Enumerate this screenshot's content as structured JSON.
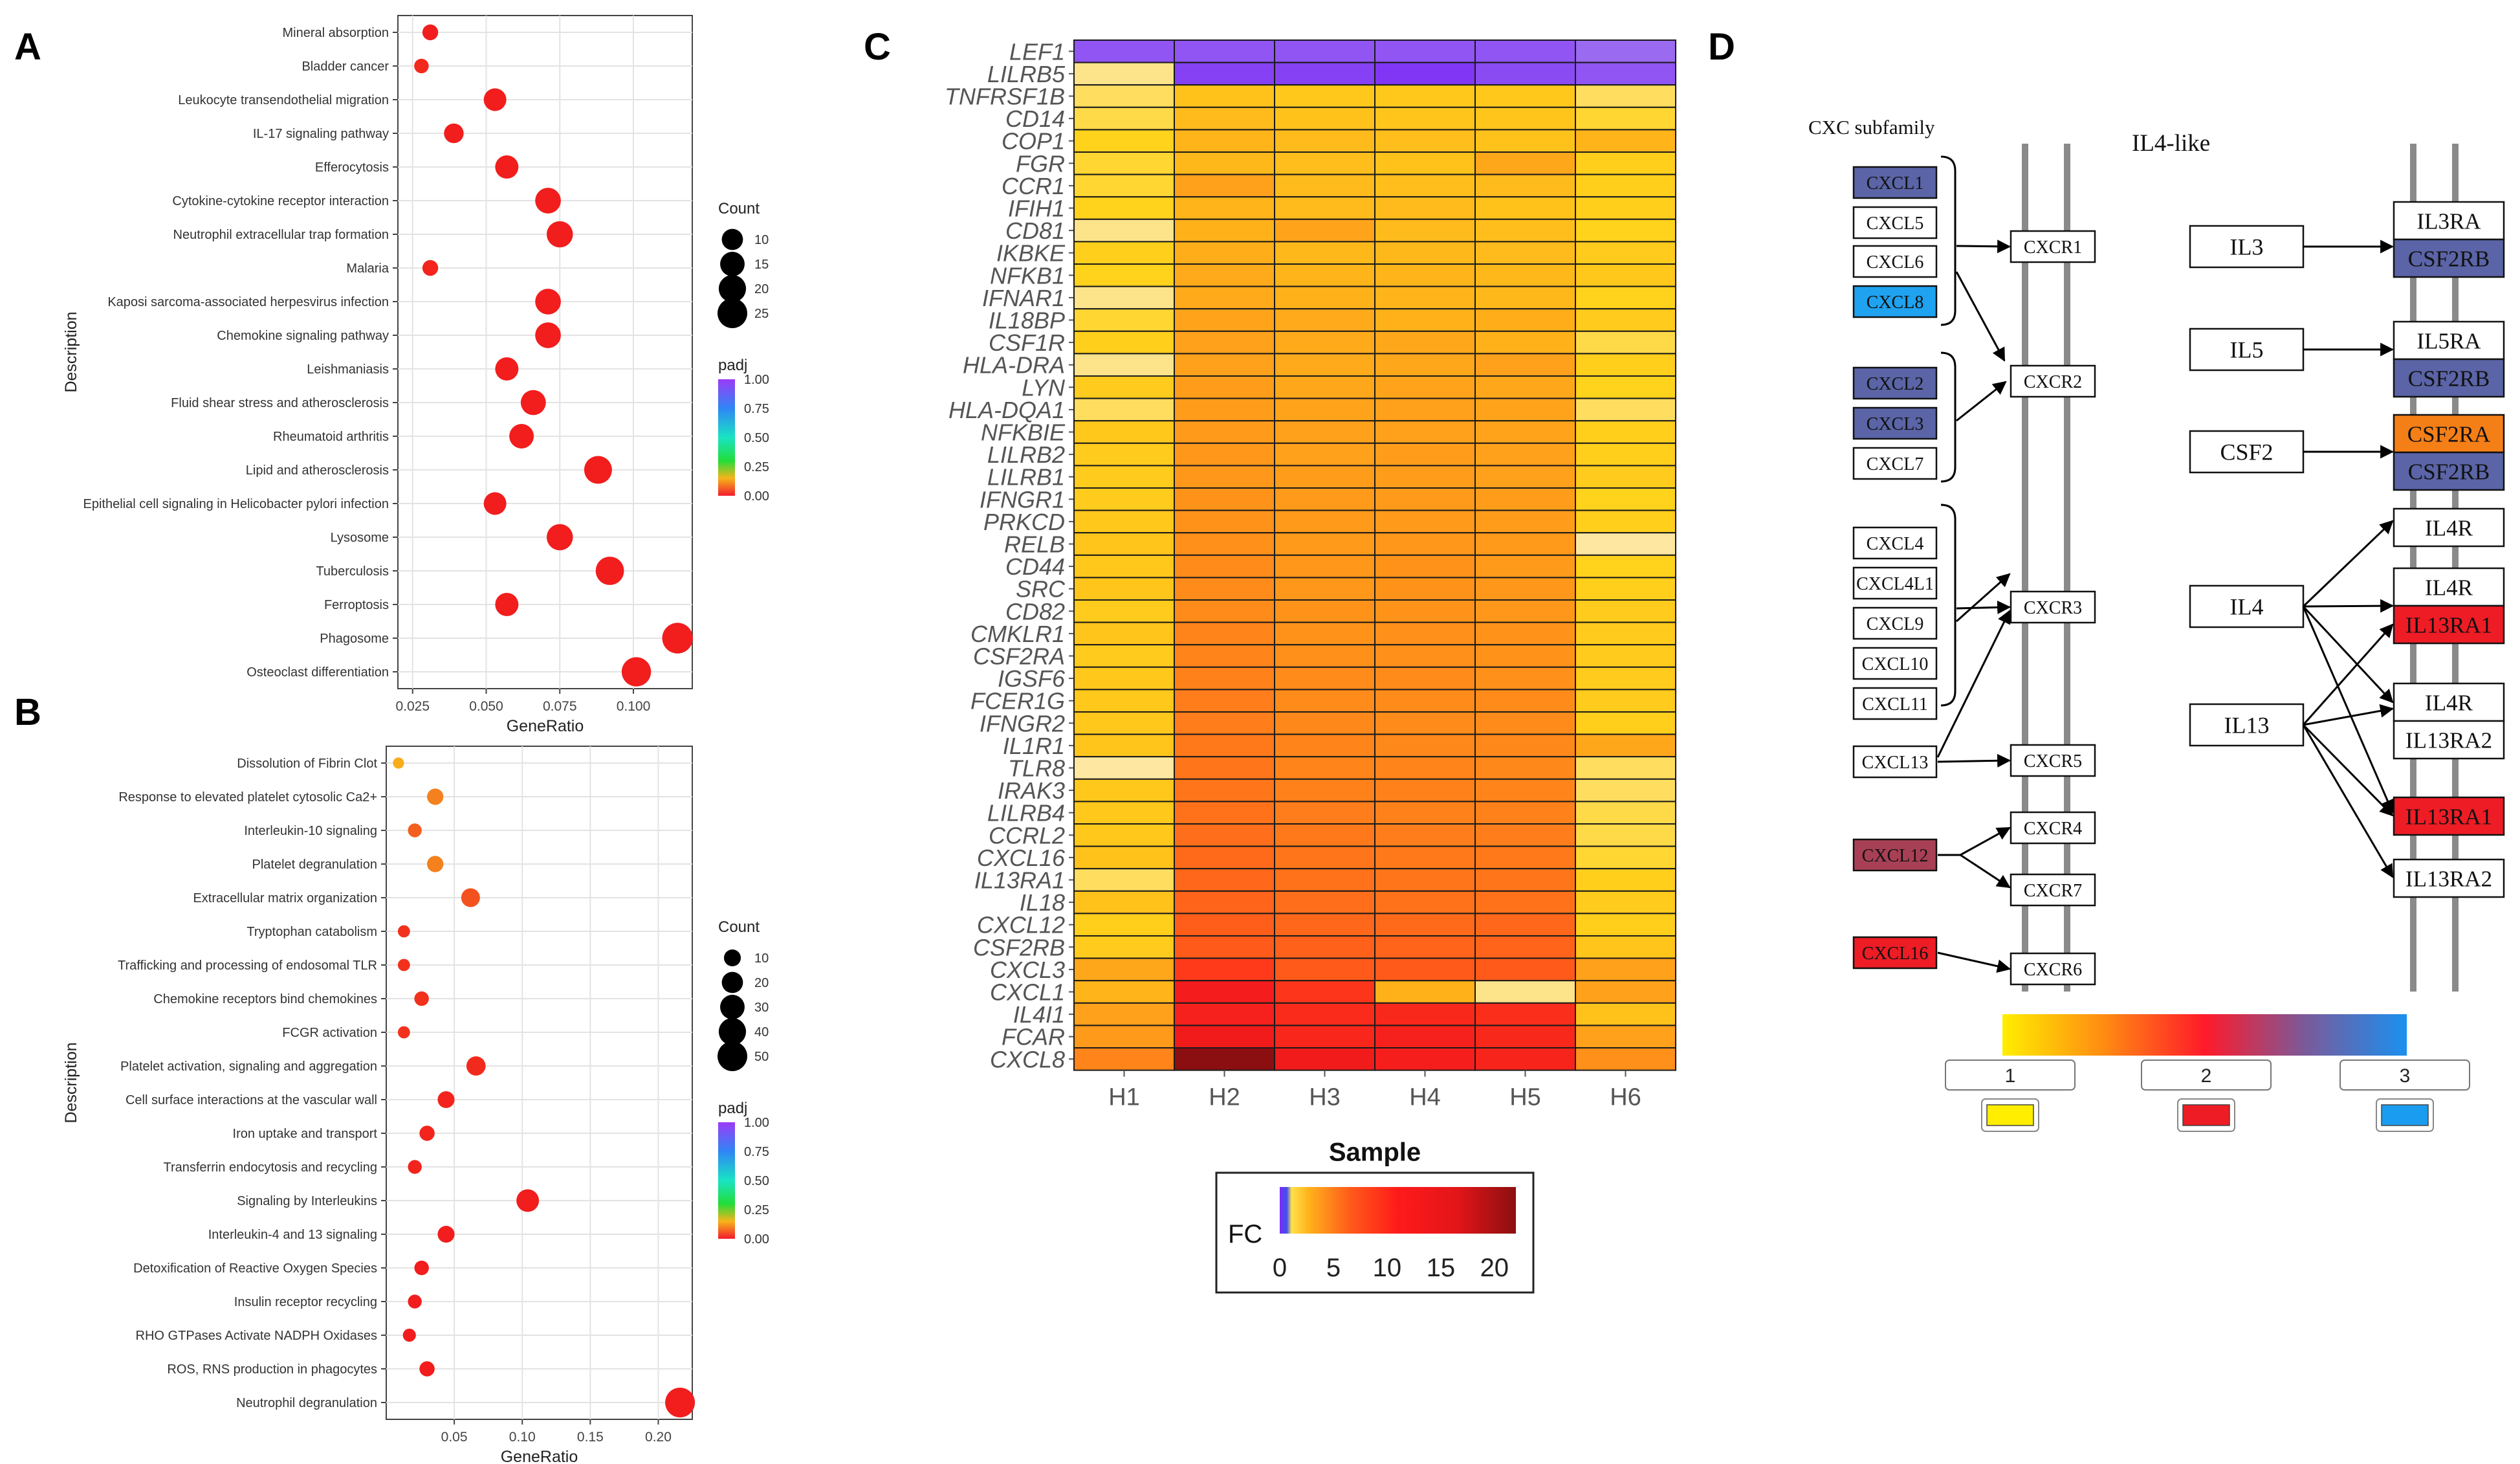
{
  "panels": {
    "a": "A",
    "b": "B",
    "c": "C",
    "d": "D"
  },
  "colors": {
    "dot_red": "#f21d1d",
    "dot_orange": "#f4801e",
    "dot_orange2": "#f59c1d",
    "heat_purple": "#8e2cf5",
    "heat_purple2": "#7c1cf0",
    "cxcl_navy": "#5a64a6",
    "cxcl_sky": "#1fa2f0",
    "cxcl_maroon": "#a84055",
    "node_red": "#ee1c25",
    "node_orange": "#f57f17",
    "track_gray": "#8a8a8a"
  },
  "chart_data": [
    {
      "id": "A",
      "type": "scatter",
      "xlabel": "GeneRatio",
      "ylabel": "Description",
      "xlim": [
        0.02,
        0.12
      ],
      "xticks": [
        0.025,
        0.05,
        0.075,
        0.1
      ],
      "xtick_labels": [
        "0.025",
        "0.050",
        "0.075",
        "0.100"
      ],
      "categories": [
        "Mineral absorption",
        "Bladder cancer",
        "Leukocyte transendothelial migration",
        "IL-17 signaling pathway",
        "Efferocytosis",
        "Cytokine-cytokine receptor interaction",
        "Neutrophil extracellular trap formation",
        "Malaria",
        "Kaposi sarcoma-associated herpesvirus infection",
        "Chemokine signaling pathway",
        "Leishmaniasis",
        "Fluid shear stress and atherosclerosis",
        "Rheumatoid arthritis",
        "Lipid and atherosclerosis",
        "Epithelial cell signaling in Helicobacter pylori infection",
        "Lysosome",
        "Tuberculosis",
        "Ferroptosis",
        "Phagosome",
        "Osteoclast differentiation"
      ],
      "x": [
        0.031,
        0.028,
        0.053,
        0.039,
        0.057,
        0.071,
        0.075,
        0.031,
        0.071,
        0.071,
        0.057,
        0.066,
        0.062,
        0.088,
        0.053,
        0.075,
        0.092,
        0.057,
        0.115,
        0.101
      ],
      "count": [
        4,
        3,
        12,
        8,
        13,
        17,
        18,
        4,
        17,
        17,
        13,
        16,
        15,
        21,
        12,
        18,
        22,
        13,
        27,
        24
      ],
      "padj": [
        0.0,
        0.02,
        0.0,
        0.0,
        0.0,
        0.0,
        0.0,
        0.01,
        0.0,
        0.0,
        0.0,
        0.0,
        0.0,
        0.0,
        0.0,
        0.0,
        0.0,
        0.0,
        0.0,
        0.0
      ],
      "legend_count": {
        "title": "Count",
        "values": [
          10,
          15,
          20,
          25
        ]
      },
      "legend_padj": {
        "title": "padj",
        "ticks": [
          "1.00",
          "0.75",
          "0.50",
          "0.25",
          "0.00"
        ]
      }
    },
    {
      "id": "B",
      "type": "scatter",
      "xlabel": "GeneRatio",
      "ylabel": "Description",
      "xlim": [
        0.0,
        0.225
      ],
      "xticks": [
        0.05,
        0.1,
        0.15,
        0.2
      ],
      "xtick_labels": [
        "0.05",
        "0.10",
        "0.15",
        "0.20"
      ],
      "categories": [
        "Dissolution of Fibrin Clot",
        "Response to elevated platelet cytosolic Ca2+",
        "Interleukin-10 signaling",
        "Platelet degranulation",
        "Extracellular matrix organization",
        "Tryptophan catabolism",
        "Trafficking and processing of endosomal TLR",
        "Chemokine receptors bind chemokines",
        "FCGR activation",
        "Platelet activation, signaling and aggregation",
        "Cell surface interactions at the vascular wall",
        "Iron uptake and transport",
        "Transferrin endocytosis and recycling",
        "Signaling by Interleukins",
        "Interleukin-4 and 13 signaling",
        "Detoxification of Reactive Oxygen Species",
        "Insulin receptor recycling",
        "RHO GTPases Activate NADPH Oxidases",
        "ROS, RNS production in phagocytes",
        "Neutrophil degranulation"
      ],
      "x": [
        0.009,
        0.036,
        0.021,
        0.036,
        0.062,
        0.013,
        0.013,
        0.026,
        0.013,
        0.066,
        0.044,
        0.03,
        0.021,
        0.104,
        0.044,
        0.026,
        0.021,
        0.017,
        0.03,
        0.216
      ],
      "count": [
        2,
        9,
        5,
        9,
        14,
        3,
        3,
        6,
        3,
        15,
        10,
        7,
        5,
        24,
        10,
        6,
        5,
        4,
        7,
        50
      ],
      "padj": [
        0.25,
        0.15,
        0.1,
        0.15,
        0.08,
        0.03,
        0.03,
        0.03,
        0.03,
        0.02,
        0.01,
        0.01,
        0.01,
        0.0,
        0.0,
        0.0,
        0.0,
        0.0,
        0.0,
        0.0
      ],
      "legend_count": {
        "title": "Count",
        "values": [
          10,
          20,
          30,
          40,
          50
        ]
      },
      "legend_padj": {
        "title": "padj",
        "ticks": [
          "1.00",
          "0.75",
          "0.50",
          "0.25",
          "0.00"
        ]
      }
    },
    {
      "id": "C",
      "type": "heatmap",
      "xlabel": "Sample",
      "columns": [
        "H1",
        "H2",
        "H3",
        "H4",
        "H5",
        "H6"
      ],
      "rows": [
        "LEF1",
        "LILRB5",
        "TNFRSF1B",
        "CD14",
        "COP1",
        "FGR",
        "CCR1",
        "IFIH1",
        "CD81",
        "IKBKE",
        "NFKB1",
        "IFNAR1",
        "IL18BP",
        "CSF1R",
        "HLA-DRA",
        "LYN",
        "HLA-DQA1",
        "NFKBIE",
        "LILRB2",
        "LILRB1",
        "IFNGR1",
        "PRKCD",
        "RELB",
        "CD44",
        "SRC",
        "CD82",
        "CMKLR1",
        "CSF2RA",
        "IGSF6",
        "FCER1G",
        "IFNGR2",
        "IL1R1",
        "TLR8",
        "IRAK3",
        "LILRB4",
        "CCRL2",
        "CXCL16",
        "IL13RA1",
        "IL18",
        "CXCL12",
        "CSF2RB",
        "CXCL3",
        "CXCL1",
        "IL4I1",
        "FCAR",
        "CXCL8"
      ],
      "values": [
        [
          0.2,
          0.2,
          0.2,
          0.2,
          0.2,
          0.3
        ],
        [
          1.0,
          0.1,
          0.1,
          0.05,
          0.15,
          0.2
        ],
        [
          1.2,
          2.0,
          1.8,
          1.8,
          1.8,
          1.2
        ],
        [
          1.3,
          2.2,
          2.0,
          1.9,
          1.9,
          1.4
        ],
        [
          1.5,
          2.4,
          2.2,
          2.1,
          2.0,
          2.4
        ],
        [
          1.4,
          2.3,
          2.1,
          2.0,
          2.8,
          1.6
        ],
        [
          1.4,
          3.0,
          2.2,
          2.1,
          2.2,
          1.6
        ],
        [
          1.5,
          2.4,
          2.2,
          2.2,
          2.0,
          1.6
        ],
        [
          1.0,
          2.5,
          2.9,
          2.2,
          2.1,
          1.5
        ],
        [
          1.6,
          2.6,
          2.3,
          2.3,
          2.2,
          1.7
        ],
        [
          1.5,
          2.7,
          2.4,
          2.4,
          2.3,
          1.8
        ],
        [
          1.0,
          2.7,
          2.5,
          2.4,
          2.3,
          1.5
        ],
        [
          1.4,
          2.9,
          2.7,
          2.5,
          2.6,
          1.7
        ],
        [
          1.6,
          3.0,
          2.7,
          2.8,
          2.5,
          1.3
        ],
        [
          1.0,
          3.0,
          2.7,
          2.8,
          3.0,
          1.6
        ],
        [
          1.7,
          3.1,
          2.8,
          2.9,
          2.8,
          1.5
        ],
        [
          1.2,
          3.1,
          2.9,
          3.0,
          2.9,
          1.2
        ],
        [
          1.8,
          3.2,
          3.0,
          3.0,
          2.9,
          1.6
        ],
        [
          1.7,
          3.3,
          3.0,
          3.1,
          3.0,
          1.6
        ],
        [
          1.7,
          3.3,
          3.1,
          3.1,
          3.0,
          1.7
        ],
        [
          1.7,
          3.4,
          3.2,
          3.2,
          3.1,
          1.5
        ],
        [
          1.8,
          3.4,
          3.2,
          3.2,
          3.1,
          1.6
        ],
        [
          1.9,
          3.5,
          3.2,
          3.3,
          3.2,
          0.9
        ],
        [
          1.8,
          3.6,
          3.3,
          3.4,
          3.2,
          1.5
        ],
        [
          1.9,
          3.6,
          3.3,
          3.4,
          3.3,
          1.6
        ],
        [
          1.7,
          3.6,
          3.4,
          3.4,
          3.3,
          1.7
        ],
        [
          1.9,
          3.8,
          3.4,
          3.5,
          3.4,
          1.7
        ],
        [
          1.7,
          3.8,
          3.5,
          3.5,
          3.4,
          1.7
        ],
        [
          1.8,
          3.9,
          3.6,
          3.6,
          3.5,
          1.7
        ],
        [
          1.8,
          4.0,
          3.6,
          3.6,
          3.6,
          1.7
        ],
        [
          1.8,
          4.0,
          3.7,
          3.6,
          3.6,
          1.6
        ],
        [
          1.9,
          4.1,
          3.8,
          3.7,
          3.7,
          2.8
        ],
        [
          0.9,
          4.2,
          3.8,
          3.8,
          3.7,
          1.2
        ],
        [
          1.8,
          4.2,
          3.9,
          3.9,
          3.8,
          1.2
        ],
        [
          1.8,
          4.3,
          4.0,
          3.9,
          3.9,
          1.3
        ],
        [
          1.8,
          4.4,
          4.1,
          4.0,
          4.0,
          1.3
        ],
        [
          2.0,
          4.5,
          4.2,
          4.1,
          4.1,
          1.4
        ],
        [
          1.2,
          4.6,
          4.3,
          4.2,
          4.2,
          1.6
        ],
        [
          2.0,
          4.7,
          4.4,
          4.3,
          4.3,
          1.7
        ],
        [
          1.6,
          4.9,
          4.6,
          4.5,
          4.6,
          1.6
        ],
        [
          1.7,
          5.0,
          4.8,
          4.7,
          4.7,
          1.9
        ],
        [
          2.8,
          6.0,
          5.0,
          5.0,
          5.0,
          3.0
        ],
        [
          2.4,
          9.0,
          6.5,
          2.5,
          1.0,
          3.0
        ],
        [
          3.0,
          8.5,
          7.5,
          7.8,
          7.2,
          2.0
        ],
        [
          3.2,
          9.5,
          8.0,
          8.5,
          7.8,
          3.0
        ],
        [
          3.8,
          20.0,
          9.5,
          8.8,
          8.2,
          3.5
        ]
      ],
      "legend": {
        "title": "FC",
        "ticks": [
          "0",
          "5",
          "10",
          "15",
          "20"
        ],
        "min": 0,
        "max": 22
      }
    }
  ],
  "pathway": {
    "cxc_title": "CXC subfamily",
    "il4_title": "IL4-like",
    "ligands": [
      {
        "label": "CXCL1",
        "color": "navy"
      },
      {
        "label": "CXCL5",
        "color": "white"
      },
      {
        "label": "CXCL6",
        "color": "white"
      },
      {
        "label": "CXCL8",
        "color": "sky"
      },
      {
        "label": "CXCL2",
        "color": "navy"
      },
      {
        "label": "CXCL3",
        "color": "navy"
      },
      {
        "label": "CXCL7",
        "color": "white"
      },
      {
        "label": "CXCL4",
        "color": "white"
      },
      {
        "label": "CXCL4L1",
        "color": "white"
      },
      {
        "label": "CXCL9",
        "color": "white"
      },
      {
        "label": "CXCL10",
        "color": "white"
      },
      {
        "label": "CXCL11",
        "color": "white"
      },
      {
        "label": "CXCL13",
        "color": "white"
      },
      {
        "label": "CXCL12",
        "color": "maroon"
      },
      {
        "label": "CXCL16",
        "color": "red"
      }
    ],
    "receptors": [
      "CXCR1",
      "CXCR2",
      "CXCR3",
      "CXCR5",
      "CXCR4",
      "CXCR7",
      "CXCR6"
    ],
    "il_ligands": [
      "IL3",
      "IL5",
      "CSF2",
      "IL4",
      "IL13"
    ],
    "il_receptors": [
      {
        "top": "IL3RA",
        "top_color": "white",
        "bottom": "CSF2RB",
        "bottom_color": "navy"
      },
      {
        "top": "IL5RA",
        "top_color": "white",
        "bottom": "CSF2RB",
        "bottom_color": "navy"
      },
      {
        "top": "CSF2RA",
        "top_color": "orange",
        "bottom": "CSF2RB",
        "bottom_color": "navy"
      },
      {
        "single": "IL4R"
      },
      {
        "top": "IL4R",
        "top_color": "white",
        "bottom": "IL13RA1",
        "bottom_color": "red"
      },
      {
        "top": "IL4R",
        "top_color": "white",
        "bottom": "IL13RA2",
        "bottom_color": "white"
      },
      {
        "single": "IL13RA1",
        "single_color": "red"
      },
      {
        "single": "IL13RA2"
      }
    ],
    "legend": {
      "labels": [
        "1",
        "2",
        "3"
      ]
    }
  }
}
